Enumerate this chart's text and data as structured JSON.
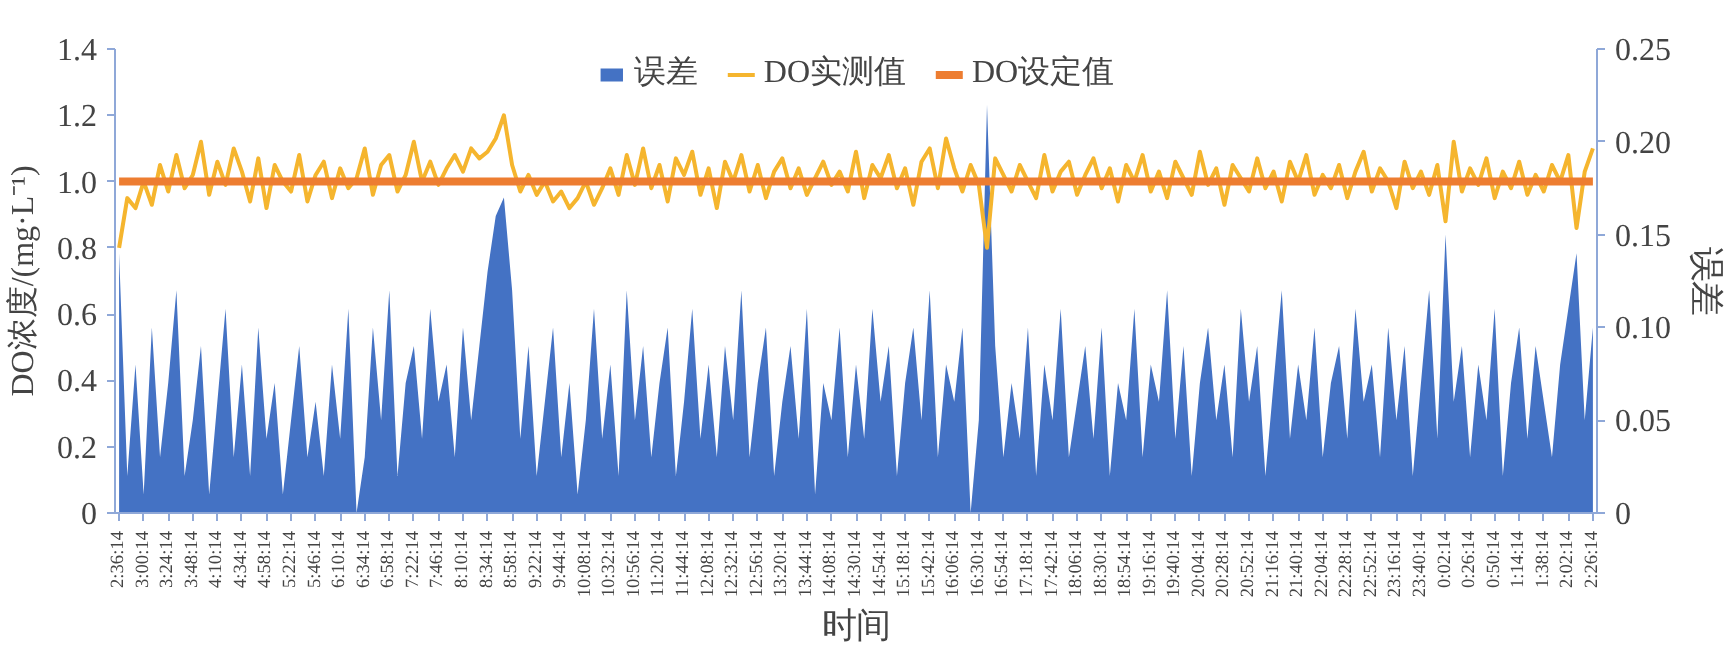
{
  "chart_data": {
    "type": "line",
    "xlabel": "时间",
    "ylabel": "DO浓度/(mg·L⁻¹)",
    "y2label": "误差",
    "categories": [
      "2:36:14",
      null,
      null,
      "3:00:14",
      null,
      null,
      "3:24:14",
      null,
      null,
      "3:48:14",
      null,
      null,
      "4:10:14",
      null,
      null,
      "4:34:14",
      null,
      null,
      "4:58:14",
      null,
      null,
      "5:22:14",
      null,
      null,
      "5:46:14",
      null,
      null,
      "6:10:14",
      null,
      null,
      "6:34:14",
      null,
      null,
      "6:58:14",
      null,
      null,
      "7:22:14",
      null,
      null,
      "7:46:14",
      null,
      null,
      "8:10:14",
      null,
      null,
      "8:34:14",
      null,
      null,
      "8:58:14",
      null,
      null,
      "9:22:14",
      null,
      null,
      "9:44:14",
      null,
      null,
      "10:08:14",
      null,
      null,
      "10:32:14",
      null,
      null,
      "10:56:14",
      null,
      null,
      "11:20:14",
      null,
      null,
      "11:44:14",
      null,
      null,
      "12:08:14",
      null,
      null,
      "12:32:14",
      null,
      null,
      "12:56:14",
      null,
      null,
      "13:20:14",
      null,
      null,
      "13:44:14",
      null,
      null,
      "14:08:14",
      null,
      null,
      "14:30:14",
      null,
      null,
      "14:54:14",
      null,
      null,
      "15:18:14",
      null,
      null,
      "15:42:14",
      null,
      null,
      "16:06:14",
      null,
      null,
      "16:30:14",
      null,
      null,
      "16:54:14",
      null,
      null,
      "17:18:14",
      null,
      null,
      "17:42:14",
      null,
      null,
      "18:06:14",
      null,
      null,
      "18:30:14",
      null,
      null,
      "18:54:14",
      null,
      null,
      "19:16:14",
      null,
      null,
      "19:40:14",
      null,
      null,
      "20:04:14",
      null,
      null,
      "20:28:14",
      null,
      null,
      "20:52:14",
      null,
      null,
      "21:16:14",
      null,
      null,
      "21:40:14",
      null,
      null,
      "22:04:14",
      null,
      null,
      "22:28:14",
      null,
      null,
      "22:52:14",
      null,
      null,
      "23:16:14",
      null,
      null,
      "23:40:14",
      null,
      null,
      "0:02:14",
      null,
      null,
      "0:26:14",
      null,
      null,
      "0:50:14",
      null,
      null,
      "1:14:14",
      null,
      null,
      "1:38:14",
      null,
      null,
      "2:02:14",
      null,
      null,
      "2:26:14"
    ],
    "series": [
      {
        "name": "误差",
        "type": "area",
        "axis": "y2",
        "color": "#4472c4",
        "values": [
          0.14,
          0.02,
          0.08,
          0.01,
          0.1,
          0.03,
          0.07,
          0.12,
          0.02,
          0.05,
          0.09,
          0.01,
          0.06,
          0.11,
          0.03,
          0.08,
          0.02,
          0.1,
          0.04,
          0.07,
          0.01,
          0.05,
          0.09,
          0.03,
          0.06,
          0.02,
          0.08,
          0.04,
          0.11,
          0.0,
          0.03,
          0.1,
          0.05,
          0.12,
          0.02,
          0.07,
          0.09,
          0.04,
          0.11,
          0.06,
          0.08,
          0.03,
          0.1,
          0.05,
          0.09,
          0.13,
          0.16,
          0.17,
          0.12,
          0.04,
          0.09,
          0.02,
          0.06,
          0.1,
          0.03,
          0.07,
          0.01,
          0.05,
          0.11,
          0.04,
          0.08,
          0.02,
          0.12,
          0.05,
          0.09,
          0.03,
          0.07,
          0.1,
          0.02,
          0.06,
          0.11,
          0.04,
          0.08,
          0.03,
          0.09,
          0.05,
          0.12,
          0.03,
          0.07,
          0.1,
          0.02,
          0.06,
          0.09,
          0.04,
          0.11,
          0.01,
          0.07,
          0.05,
          0.1,
          0.03,
          0.08,
          0.04,
          0.11,
          0.06,
          0.09,
          0.02,
          0.07,
          0.1,
          0.05,
          0.12,
          0.03,
          0.08,
          0.06,
          0.1,
          0.0,
          0.05,
          0.22,
          0.09,
          0.03,
          0.07,
          0.04,
          0.1,
          0.02,
          0.08,
          0.05,
          0.11,
          0.03,
          0.06,
          0.09,
          0.04,
          0.1,
          0.02,
          0.07,
          0.05,
          0.11,
          0.03,
          0.08,
          0.06,
          0.12,
          0.04,
          0.09,
          0.02,
          0.07,
          0.1,
          0.05,
          0.08,
          0.03,
          0.11,
          0.06,
          0.09,
          0.02,
          0.07,
          0.12,
          0.04,
          0.08,
          0.05,
          0.1,
          0.03,
          0.07,
          0.09,
          0.04,
          0.11,
          0.06,
          0.08,
          0.03,
          0.1,
          0.05,
          0.09,
          0.02,
          0.07,
          0.12,
          0.04,
          0.15,
          0.06,
          0.09,
          0.03,
          0.08,
          0.05,
          0.11,
          0.02,
          0.07,
          0.1,
          0.04,
          0.09,
          0.06,
          0.03,
          0.08,
          0.11,
          0.14,
          0.05,
          0.1
        ]
      },
      {
        "name": "DO实测值",
        "color": "#f5b52e",
        "values": [
          0.8,
          0.95,
          0.92,
          1.0,
          0.93,
          1.05,
          0.97,
          1.08,
          0.98,
          1.02,
          1.12,
          0.96,
          1.06,
          0.99,
          1.1,
          1.03,
          0.94,
          1.07,
          0.92,
          1.05,
          1.0,
          0.97,
          1.08,
          0.94,
          1.02,
          1.06,
          0.95,
          1.04,
          0.98,
          1.01,
          1.1,
          0.96,
          1.05,
          1.08,
          0.97,
          1.02,
          1.12,
          1.0,
          1.06,
          0.99,
          1.04,
          1.08,
          1.03,
          1.1,
          1.07,
          1.09,
          1.13,
          1.2,
          1.05,
          0.97,
          1.02,
          0.96,
          1.0,
          0.94,
          0.97,
          0.92,
          0.95,
          1.0,
          0.93,
          0.98,
          1.04,
          0.96,
          1.08,
          0.99,
          1.1,
          0.98,
          1.05,
          0.94,
          1.07,
          1.02,
          1.09,
          0.96,
          1.04,
          0.92,
          1.06,
          1.0,
          1.08,
          0.97,
          1.05,
          0.95,
          1.03,
          1.07,
          0.98,
          1.04,
          0.96,
          1.01,
          1.06,
          0.99,
          1.03,
          0.97,
          1.09,
          0.95,
          1.05,
          1.01,
          1.08,
          0.98,
          1.04,
          0.93,
          1.06,
          1.1,
          0.98,
          1.13,
          1.04,
          0.97,
          1.05,
          0.99,
          0.8,
          1.07,
          1.02,
          0.97,
          1.05,
          1.0,
          0.95,
          1.08,
          0.97,
          1.03,
          1.06,
          0.96,
          1.02,
          1.07,
          0.98,
          1.04,
          0.94,
          1.05,
          1.0,
          1.08,
          0.97,
          1.03,
          0.95,
          1.06,
          1.01,
          0.96,
          1.09,
          0.99,
          1.04,
          0.93,
          1.05,
          1.01,
          0.97,
          1.07,
          0.98,
          1.03,
          0.94,
          1.06,
          1.0,
          1.08,
          0.96,
          1.02,
          0.98,
          1.05,
          0.95,
          1.03,
          1.09,
          0.97,
          1.04,
          1.0,
          0.92,
          1.06,
          0.98,
          1.03,
          0.96,
          1.05,
          0.88,
          1.12,
          0.97,
          1.04,
          0.99,
          1.07,
          0.95,
          1.03,
          0.98,
          1.06,
          0.96,
          1.02,
          0.97,
          1.05,
          1.0,
          1.08,
          0.86,
          1.03,
          1.1
        ]
      },
      {
        "name": "DO设定值",
        "color": "#ed7d31",
        "values": [
          1.0,
          1.0,
          1.0,
          1.0,
          1.0,
          1.0,
          1.0,
          1.0,
          1.0,
          1.0,
          1.0,
          1.0,
          1.0,
          1.0,
          1.0,
          1.0,
          1.0,
          1.0,
          1.0,
          1.0,
          1.0,
          1.0,
          1.0,
          1.0,
          1.0,
          1.0,
          1.0,
          1.0,
          1.0,
          1.0,
          1.0,
          1.0,
          1.0,
          1.0,
          1.0,
          1.0,
          1.0,
          1.0,
          1.0,
          1.0,
          1.0,
          1.0,
          1.0,
          1.0,
          1.0,
          1.0,
          1.0,
          1.0,
          1.0,
          1.0,
          1.0,
          1.0,
          1.0,
          1.0,
          1.0,
          1.0,
          1.0,
          1.0,
          1.0,
          1.0,
          1.0,
          1.0,
          1.0,
          1.0,
          1.0,
          1.0,
          1.0,
          1.0,
          1.0,
          1.0,
          1.0,
          1.0,
          1.0,
          1.0,
          1.0,
          1.0,
          1.0,
          1.0,
          1.0,
          1.0,
          1.0,
          1.0,
          1.0,
          1.0,
          1.0,
          1.0,
          1.0,
          1.0,
          1.0,
          1.0,
          1.0,
          1.0,
          1.0,
          1.0,
          1.0,
          1.0,
          1.0,
          1.0,
          1.0,
          1.0,
          1.0,
          1.0,
          1.0,
          1.0,
          1.0,
          1.0,
          1.0,
          1.0,
          1.0,
          1.0,
          1.0,
          1.0,
          1.0,
          1.0,
          1.0,
          1.0,
          1.0,
          1.0,
          1.0,
          1.0,
          1.0,
          1.0,
          1.0,
          1.0,
          1.0,
          1.0,
          1.0,
          1.0,
          1.0,
          1.0,
          1.0,
          1.0,
          1.0,
          1.0,
          1.0,
          1.0,
          1.0,
          1.0,
          1.0,
          1.0,
          1.0,
          1.0,
          1.0,
          1.0,
          1.0,
          1.0,
          1.0,
          1.0,
          1.0,
          1.0,
          1.0,
          1.0,
          1.0,
          1.0,
          1.0,
          1.0,
          1.0,
          1.0,
          1.0,
          1.0,
          1.0,
          1.0,
          1.0,
          1.0,
          1.0,
          1.0,
          1.0,
          1.0,
          1.0,
          1.0,
          1.0,
          1.0,
          1.0,
          1.0,
          1.0,
          1.0,
          1.0,
          1.0,
          1.0,
          1.0,
          1.0
        ]
      }
    ],
    "ylim": [
      0,
      1.4
    ],
    "yticks": [
      0,
      0.2,
      0.4,
      0.6,
      0.8,
      {
        "value": 1,
        "label": "1.0"
      },
      1.2,
      1.4
    ],
    "y2lim": [
      0,
      0.25
    ],
    "y2ticks": [
      0,
      0.05,
      {
        "value": 0.1,
        "label": "0.10"
      },
      0.15,
      {
        "value": 0.2,
        "label": "0.20"
      },
      0.25
    ],
    "grid": false,
    "legend": "top",
    "marker": "none",
    "line_style": "solid"
  }
}
